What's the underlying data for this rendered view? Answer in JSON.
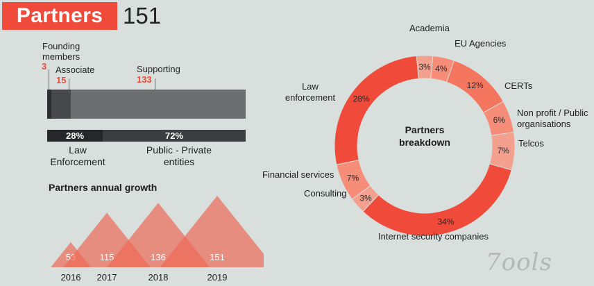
{
  "header": {
    "title": "Partners",
    "total": "151"
  },
  "members": {
    "founding": {
      "label_line1": "Founding",
      "label_line2": "members",
      "count": "3"
    },
    "associate": {
      "label": "Associate",
      "count": "15"
    },
    "supporting": {
      "label": "Supporting",
      "count": "133"
    },
    "values": [
      3,
      15,
      133
    ]
  },
  "split": {
    "law_pct": "28%",
    "law_label_line1": "Law",
    "law_label_line2": "Enforcement",
    "public_pct": "72%",
    "public_label_line1": "Public - Private",
    "public_label_line2": "entities",
    "values": [
      28,
      72
    ]
  },
  "growth": {
    "title": "Partners annual growth",
    "years": [
      "2016",
      "2017",
      "2018",
      "2019"
    ],
    "values": [
      53,
      115,
      136,
      151
    ],
    "labels": [
      "53",
      "115",
      "136",
      "151"
    ]
  },
  "chart_data": {
    "type": "pie",
    "title_line1": "Partners",
    "title_line2": "breakdown",
    "categories": [
      "Academia",
      "EU Agencies",
      "CERTs",
      "Non profit / Public organisations",
      "Telcos",
      "Internet security companies",
      "Consulting",
      "Financial services",
      "Law enforcement"
    ],
    "values": [
      3,
      4,
      12,
      6,
      7,
      34,
      3,
      7,
      28
    ],
    "pct_labels": [
      "3%",
      "4%",
      "12%",
      "6%",
      "7%",
      "34%",
      "3%",
      "7%",
      "28%"
    ],
    "label_lines": {
      "academia": "Academia",
      "eu": "EU Agencies",
      "certs": "CERTs",
      "nonprofit1": "Non profit / Public",
      "nonprofit2": "organisations",
      "telcos": "Telcos",
      "internet": "Internet security companies",
      "consulting": "Consulting",
      "financial": "Financial services",
      "law1": "Law",
      "law2": "enforcement"
    },
    "colors": [
      "#f4a08f",
      "#f68d79",
      "#f4765f",
      "#f68d79",
      "#f4a08f",
      "#f04a3a",
      "#f4a08f",
      "#f68d79",
      "#f04a3a"
    ]
  },
  "watermark": "7ools"
}
